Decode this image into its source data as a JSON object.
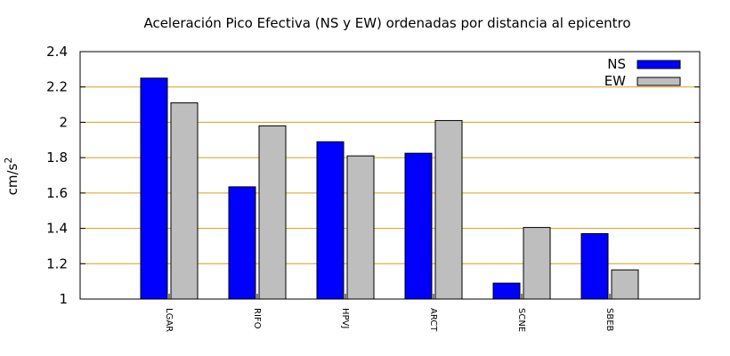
{
  "chart_data": {
    "type": "bar",
    "title": "Aceleración Pico Efectiva (NS y EW) ordenadas por distancia al epicentro",
    "xlabel": "",
    "ylabel": "cm/s",
    "ylabel_superscript": "2",
    "ylim": [
      1,
      2.4
    ],
    "yticks": [
      1,
      1.2,
      1.4,
      1.6,
      1.8,
      2,
      2.2,
      2.4
    ],
    "ytick_labels": [
      "1",
      "1.2",
      "1.4",
      "1.6",
      "1.8",
      "2",
      "2.2",
      "2.4"
    ],
    "grid": true,
    "grid_color": "#d4a017",
    "legend_position": "top-right",
    "categories": [
      "LGAR",
      "RIFO",
      "HPVJ",
      "ARCT",
      "SCNE",
      "SBEB"
    ],
    "series": [
      {
        "name": "NS",
        "color": "#0000ff",
        "values": [
          2.25,
          1.635,
          1.89,
          1.825,
          1.09,
          1.37
        ]
      },
      {
        "name": "EW",
        "color": "#bebebe",
        "values": [
          2.11,
          1.98,
          1.81,
          2.01,
          1.405,
          1.165
        ]
      }
    ]
  }
}
